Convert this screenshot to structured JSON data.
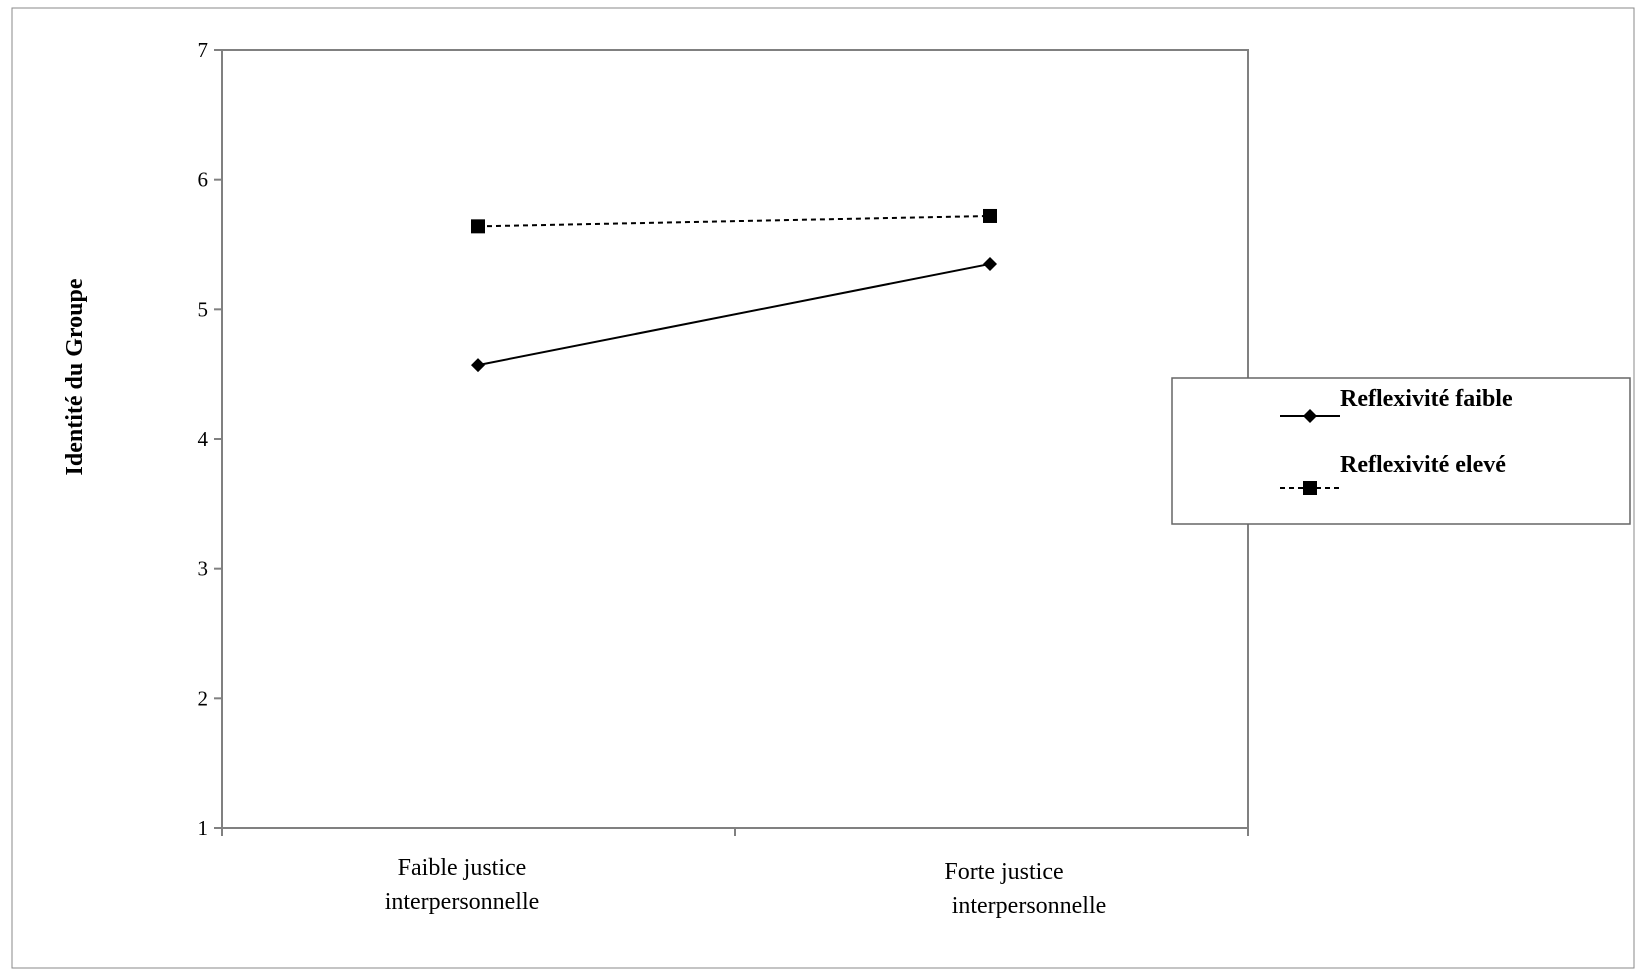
{
  "chart_data": {
    "type": "line",
    "title": "",
    "xlabel": "",
    "ylabel": "Identité du Groupe",
    "ylim": [
      1,
      7
    ],
    "yticks": [
      1,
      2,
      3,
      4,
      5,
      6,
      7
    ],
    "categories": [
      [
        "Faible justice",
        "interpersonnelle"
      ],
      [
        "Forte justice",
        "interpersonnelle"
      ]
    ],
    "series": [
      {
        "name": "Reflexivité faible",
        "values": [
          4.57,
          5.35
        ],
        "marker": "diamond",
        "line_style": "solid",
        "color": "#000000"
      },
      {
        "name": "Reflexivité elevé",
        "values": [
          5.64,
          5.72
        ],
        "marker": "square",
        "line_style": "dashed",
        "color": "#000000"
      }
    ],
    "legend_position": "right",
    "grid": false
  }
}
